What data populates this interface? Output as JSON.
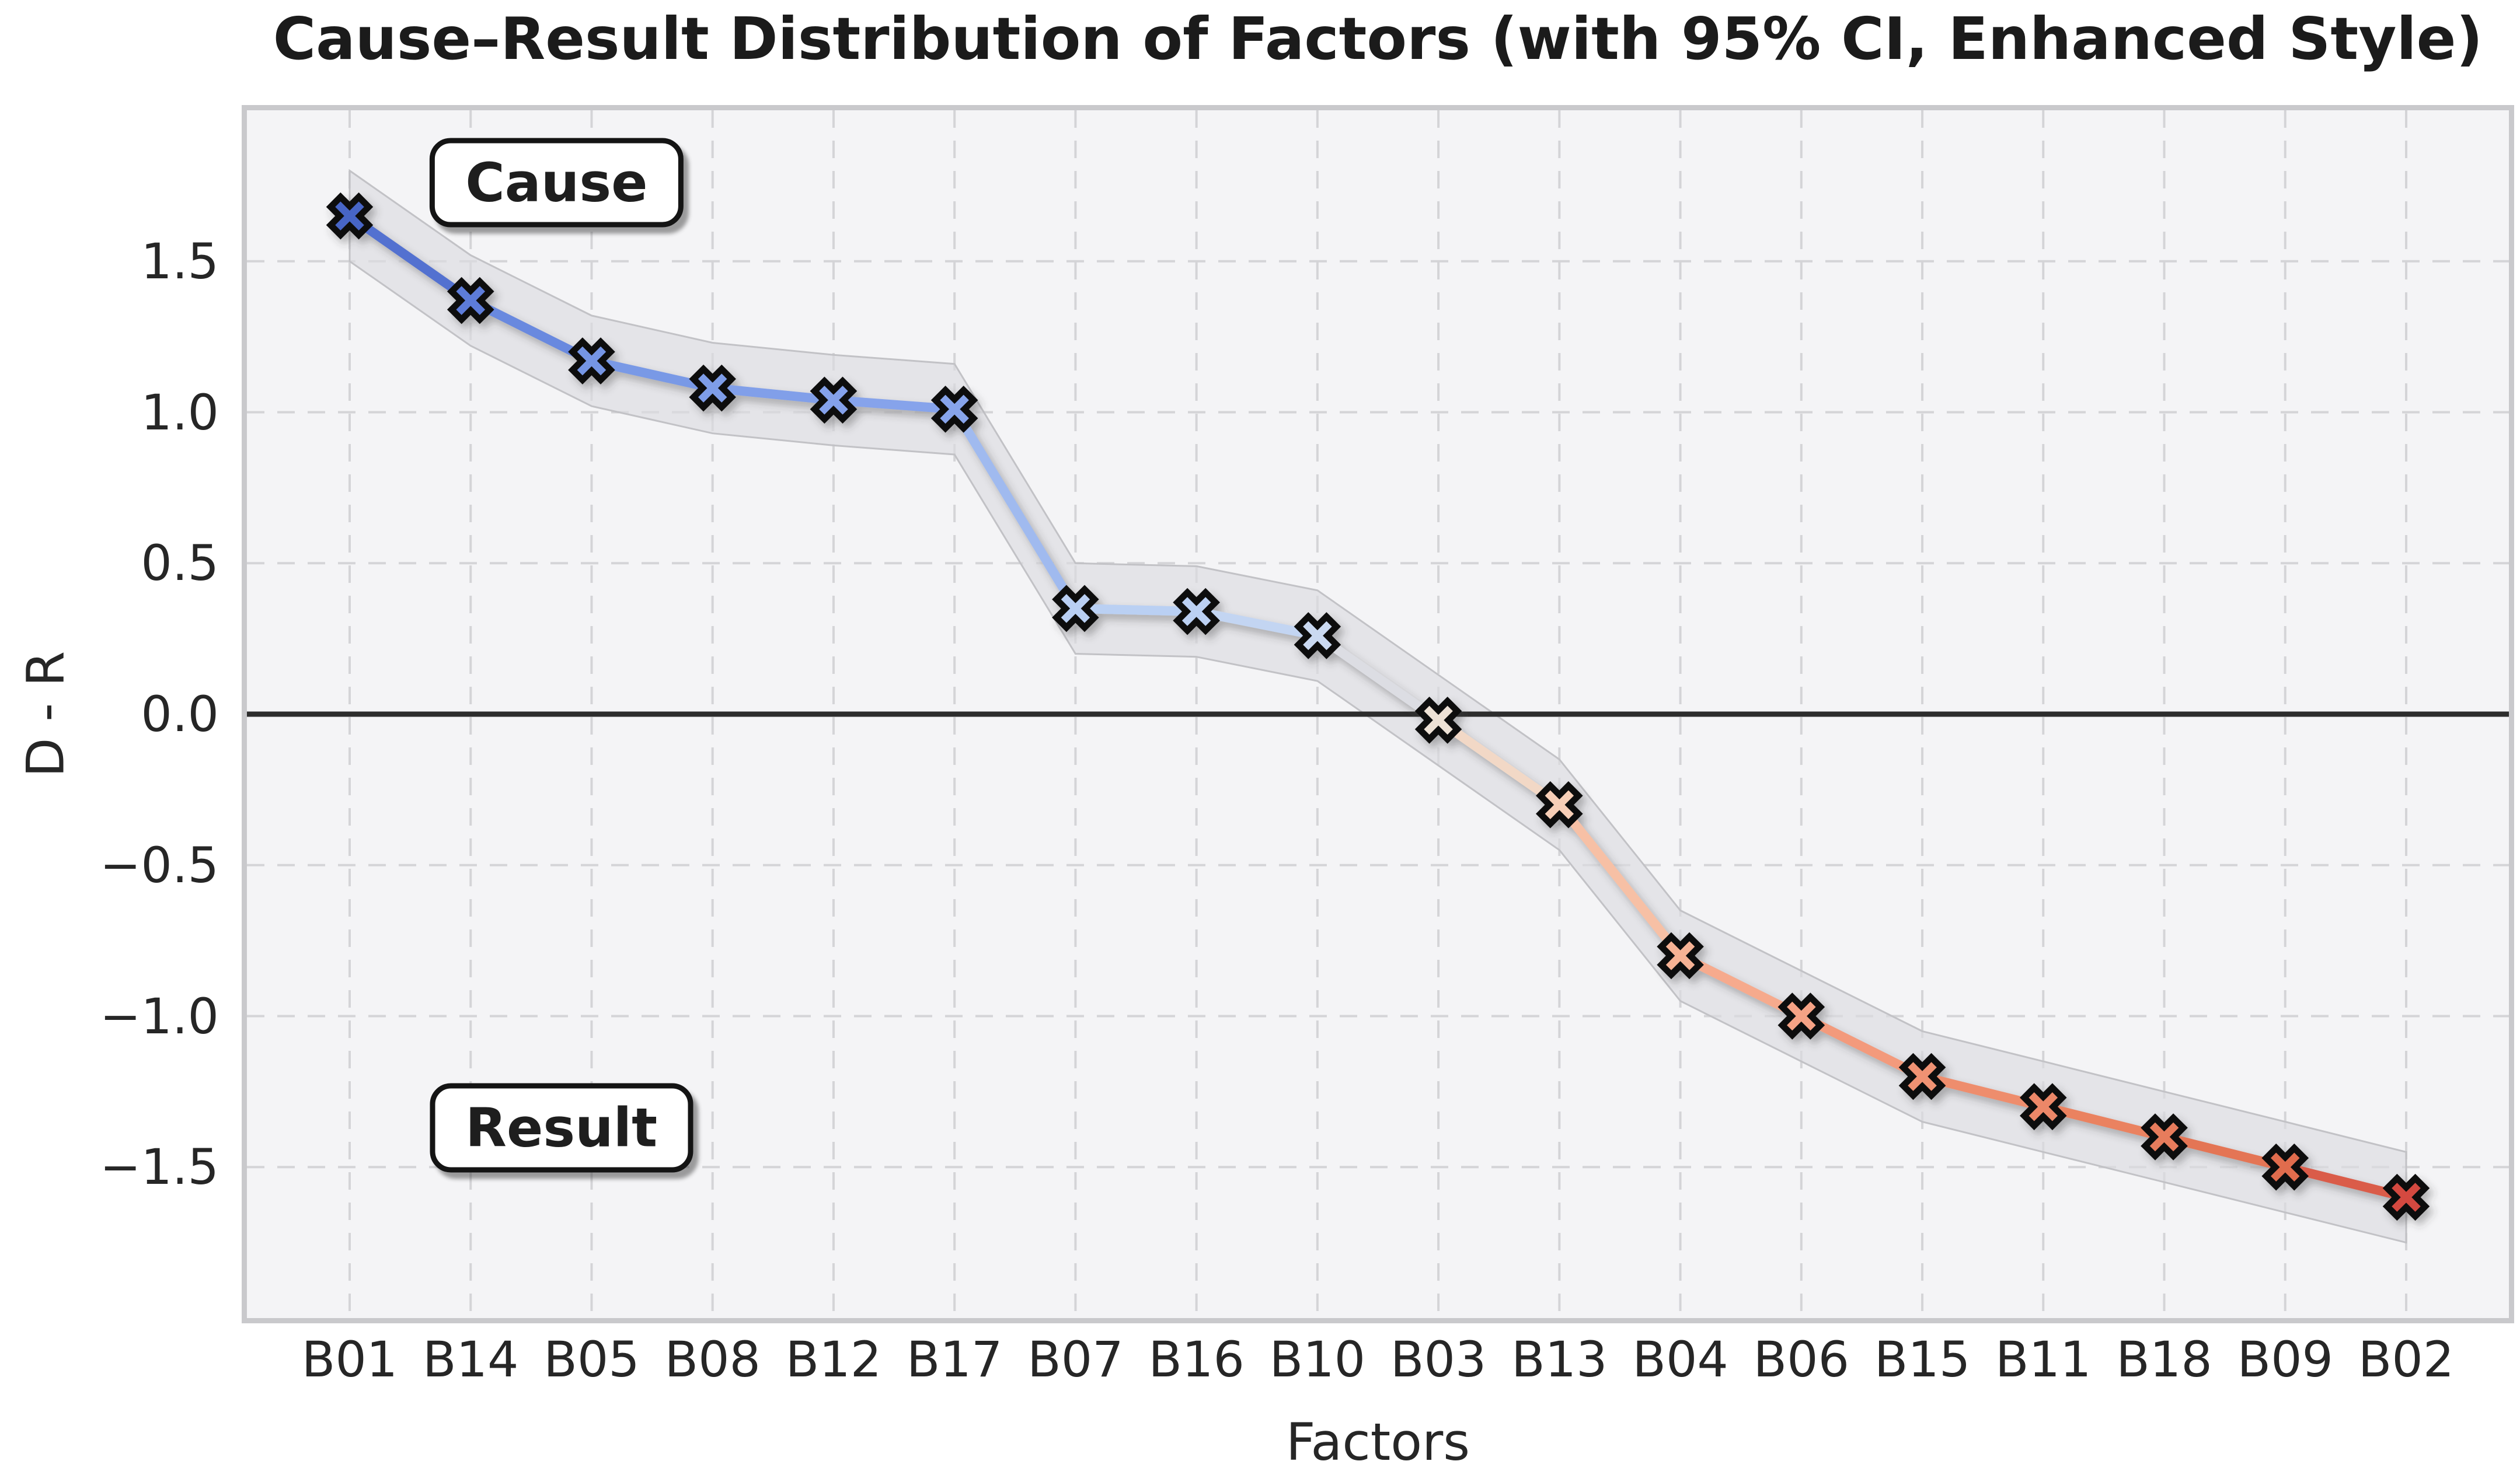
{
  "chart": {
    "title": "Cause–Result Distribution of Factors (with 95% CI, Enhanced Style)",
    "xlabel": "Factors",
    "ylabel": "D - R"
  },
  "chart_data": {
    "type": "line",
    "title": "Cause–Result Distribution of Factors (with 95% CI, Enhanced Style)",
    "xlabel": "Factors",
    "ylabel": "D - R",
    "categories": [
      "B01",
      "B14",
      "B05",
      "B08",
      "B12",
      "B17",
      "B07",
      "B16",
      "B10",
      "B03",
      "B13",
      "B04",
      "B06",
      "B15",
      "B11",
      "B18",
      "B09",
      "B02"
    ],
    "values": [
      1.65,
      1.37,
      1.17,
      1.08,
      1.04,
      1.01,
      0.35,
      0.34,
      0.26,
      -0.02,
      -0.3,
      -0.8,
      -1.0,
      -1.2,
      -1.3,
      -1.4,
      -1.5,
      -1.6
    ],
    "ci_halfwidth": 0.15,
    "ci_level": "95% CI",
    "ylim": [
      -2,
      2
    ],
    "yticks": [
      1.5,
      1.0,
      0.5,
      0.0,
      -0.5,
      -1.0,
      -1.5
    ],
    "ytick_labels": [
      "1.5",
      "1.0",
      "0.5",
      "0.0",
      "−0.5",
      "−1.0",
      "−1.5"
    ],
    "grid": true,
    "grid_style": "dashed",
    "legend_position": "none",
    "zero_line": true,
    "marker": "X",
    "point_colors": [
      "#4765C6",
      "#5D7CD9",
      "#7495E4",
      "#7E9DE8",
      "#84A1EA",
      "#87A4EB",
      "#B9CFF3",
      "#BBD0F3",
      "#CAD9F1",
      "#EDE1D5",
      "#F7CEB6",
      "#F6B294",
      "#F5A285",
      "#F09273",
      "#EC8767",
      "#E77C5B",
      "#E06C4E",
      "#D44A41"
    ],
    "marker_edge_color": "#111111",
    "band_fill_color": "#dcdce0",
    "band_edge_color": "#c2c2c6",
    "grid_color": "#d4d4d7",
    "zero_line_color": "#2d2d2d",
    "plot_background": "#f4f4f6",
    "annotations": [
      {
        "text": "Cause",
        "x": 1.71,
        "y": 1.76
      },
      {
        "text": "Result",
        "x": 1.75,
        "y": -1.37
      }
    ]
  }
}
